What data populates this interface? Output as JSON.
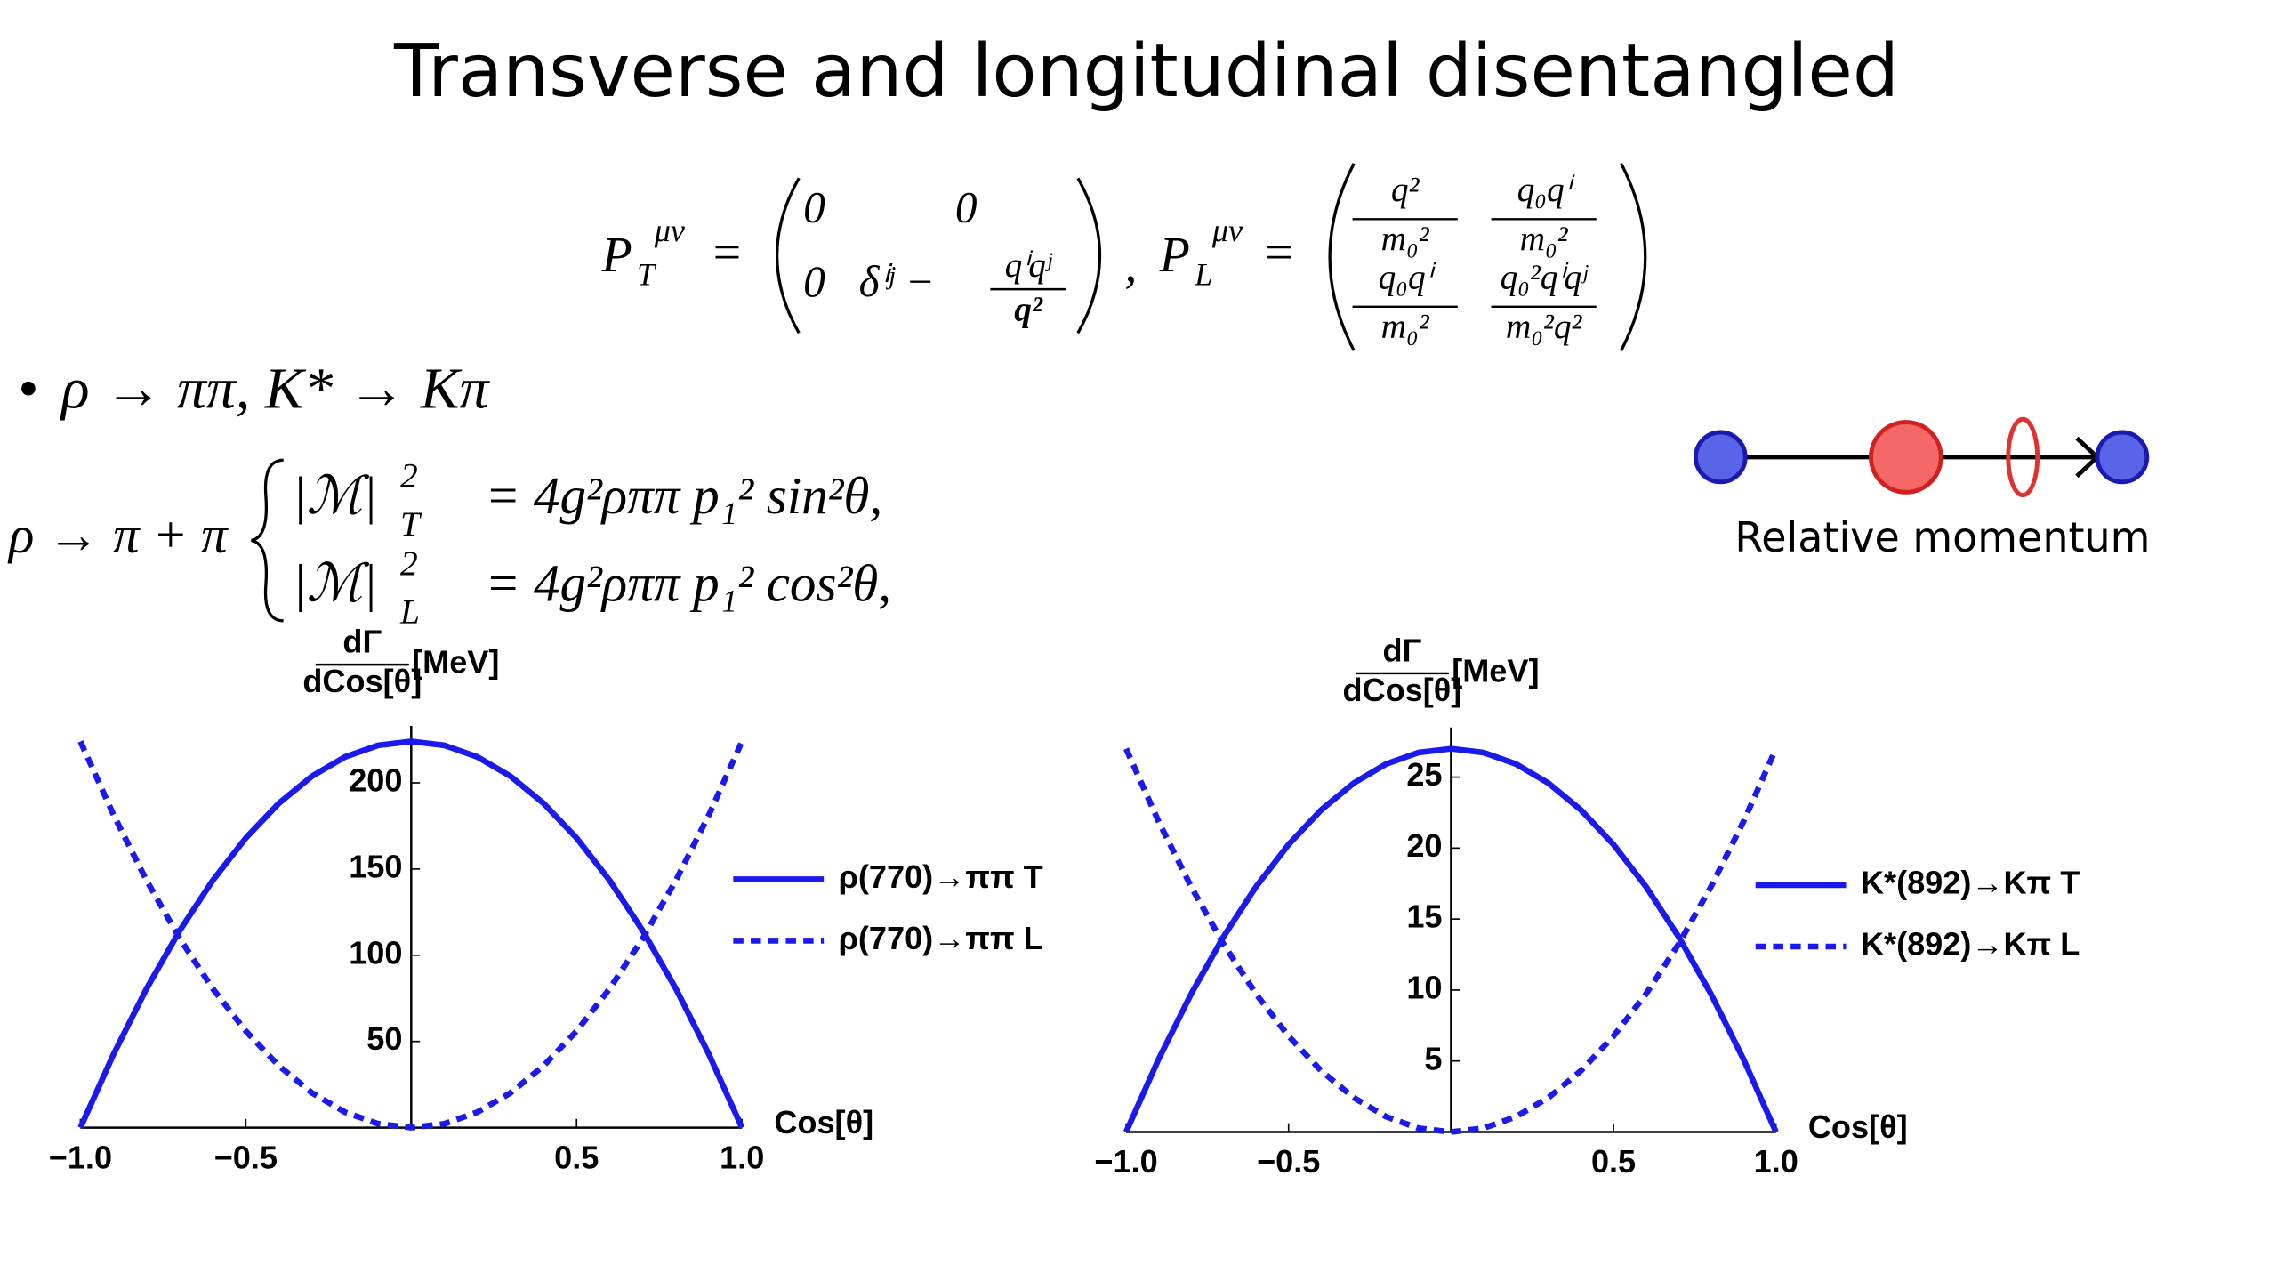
{
  "title": "Transverse and longitudinal disentangled",
  "projectors": [
    {
      "symbol": "P",
      "sup": "μν",
      "sub": "T",
      "entries": [
        "0",
        "0",
        "0",
        "δⁱʲ −"
      ],
      "fractions": [
        {
          "num": "qⁱqʲ",
          "den": "q²"
        }
      ]
    },
    {
      "symbol": "P",
      "sup": "μν",
      "sub": "L",
      "fractions": [
        {
          "num": "q²",
          "den": "m₀²"
        },
        {
          "num": "q₀qⁱ",
          "den": "m₀²"
        },
        {
          "num": "q₀qⁱ",
          "den": "m₀²"
        },
        {
          "num": "q₀²qⁱqʲ",
          "den": "m₀²q²"
        }
      ]
    }
  ],
  "bullet": "ρ → ππ, K* → Kπ",
  "decay": {
    "lhs": "ρ → π + π",
    "lines": [
      {
        "amp": "|ℳ|",
        "sup": "2",
        "sub": "T",
        "rhs": "= 4g²ρππ p₁² sin²θ,"
      },
      {
        "amp": "|ℳ|",
        "sup": "2",
        "sub": "L",
        "rhs": "= 4g²ρππ p₁² cos²θ,"
      }
    ]
  },
  "diagram_label": "Relative momentum",
  "chart_data": [
    {
      "type": "line",
      "y_label": {
        "num": "dΓ",
        "den": "dCos[θ]",
        "unit": "[MeV]"
      },
      "x_label": "Cos[θ]",
      "x": [
        -1,
        -0.9,
        -0.8,
        -0.7,
        -0.6,
        -0.5,
        -0.4,
        -0.3,
        -0.2,
        -0.1,
        0,
        0.1,
        0.2,
        0.3,
        0.4,
        0.5,
        0.6,
        0.7,
        0.8,
        0.9,
        1
      ],
      "series": [
        {
          "name": "ρ(770)→ππ T",
          "color": "#1a1aee",
          "dash": false,
          "values": [
            0,
            42.56,
            80.64,
            114.24,
            143.36,
            168,
            188.16,
            203.84,
            215.04,
            221.76,
            224,
            221.76,
            215.04,
            203.84,
            188.16,
            168,
            143.36,
            114.24,
            80.64,
            42.56,
            0
          ]
        },
        {
          "name": "ρ(770)→ππ L",
          "color": "#1a1aee",
          "dash": true,
          "values": [
            224,
            181.44,
            143.36,
            109.76,
            80.64,
            56,
            35.84,
            20.16,
            8.96,
            2.24,
            0,
            2.24,
            8.96,
            20.16,
            35.84,
            56,
            80.64,
            109.76,
            143.36,
            181.44,
            224
          ]
        }
      ],
      "xlim": [
        -1,
        1
      ],
      "xticks": [
        {
          "value": -1,
          "label": "−1.0"
        },
        {
          "value": -0.5,
          "label": "−0.5"
        },
        0.5,
        {
          "value": 1,
          "label": "1.0"
        }
      ],
      "ylim": [
        0,
        233
      ],
      "yticks": [
        50,
        100,
        150,
        200
      ]
    },
    {
      "type": "line",
      "y_label": {
        "num": "dΓ",
        "den": "dCos[θ]",
        "unit": "[MeV]"
      },
      "x_label": "Cos[θ]",
      "x": [
        -1,
        -0.9,
        -0.8,
        -0.7,
        -0.6,
        -0.5,
        -0.4,
        -0.3,
        -0.2,
        -0.1,
        0,
        0.1,
        0.2,
        0.3,
        0.4,
        0.5,
        0.6,
        0.7,
        0.8,
        0.9,
        1
      ],
      "series": [
        {
          "name": "K*(892)→Kπ T",
          "color": "#1a1aee",
          "dash": false,
          "values": [
            0,
            5.13,
            9.72,
            13.77,
            17.28,
            20.25,
            22.68,
            24.57,
            25.92,
            26.73,
            27,
            26.73,
            25.92,
            24.57,
            22.68,
            20.25,
            17.28,
            13.77,
            9.72,
            5.13,
            0
          ]
        },
        {
          "name": "K*(892)→Kπ L",
          "color": "#1a1aee",
          "dash": true,
          "values": [
            27,
            21.87,
            17.28,
            13.23,
            9.72,
            6.75,
            4.32,
            2.43,
            1.08,
            0.27,
            0,
            0.27,
            1.08,
            2.43,
            4.32,
            6.75,
            9.72,
            13.23,
            17.28,
            21.87,
            27
          ]
        }
      ],
      "xlim": [
        -1,
        1
      ],
      "xticks": [
        {
          "value": -1,
          "label": "−1.0"
        },
        {
          "value": -0.5,
          "label": "−0.5"
        },
        0.5,
        {
          "value": 1,
          "label": "1.0"
        }
      ],
      "ylim": [
        0,
        28.5
      ],
      "yticks": [
        5,
        10,
        15,
        20,
        25
      ]
    }
  ]
}
